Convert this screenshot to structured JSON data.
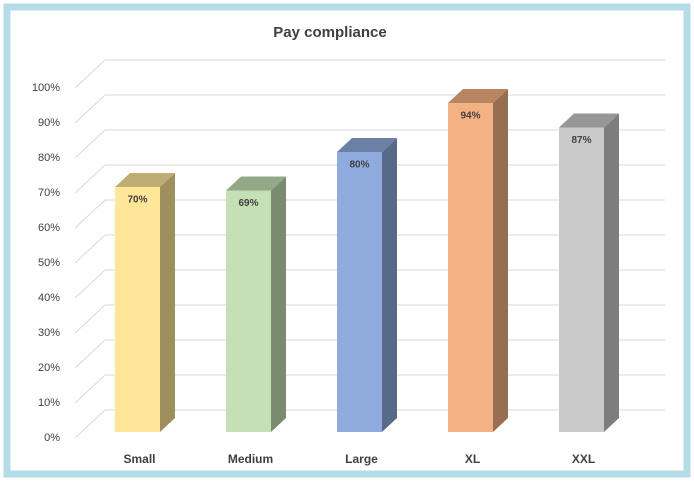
{
  "chart_data": {
    "type": "bar3d",
    "title": "Pay compliance",
    "categories": [
      "Small",
      "Medium",
      "Large",
      "XL",
      "XXL"
    ],
    "values": [
      70,
      69,
      80,
      94,
      87
    ],
    "value_labels": [
      "70%",
      "69%",
      "80%",
      "94%",
      "87%"
    ],
    "colors": [
      "#ffe699",
      "#c5e0b4",
      "#8faadc",
      "#f4b183",
      "#c9c9c9"
    ],
    "ylim": [
      0,
      100
    ],
    "yticks": [
      {
        "value": 0,
        "label": "0%"
      },
      {
        "value": 10,
        "label": "10%"
      },
      {
        "value": 20,
        "label": "20%"
      },
      {
        "value": 30,
        "label": "30%"
      },
      {
        "value": 40,
        "label": "40%"
      },
      {
        "value": 50,
        "label": "50%"
      },
      {
        "value": 60,
        "label": "60%"
      },
      {
        "value": 70,
        "label": "70%"
      },
      {
        "value": 80,
        "label": "80%"
      },
      {
        "value": 90,
        "label": "90%"
      },
      {
        "value": 100,
        "label": "100%"
      }
    ],
    "grid": true
  }
}
